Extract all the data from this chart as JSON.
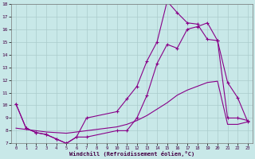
{
  "xlabel": "Windchill (Refroidissement éolien,°C)",
  "xlim": [
    -0.5,
    23.5
  ],
  "ylim": [
    7,
    18
  ],
  "yticks": [
    7,
    8,
    9,
    10,
    11,
    12,
    13,
    14,
    15,
    16,
    17,
    18
  ],
  "xticks": [
    0,
    1,
    2,
    3,
    4,
    5,
    6,
    7,
    8,
    9,
    10,
    11,
    12,
    13,
    14,
    15,
    16,
    17,
    18,
    19,
    20,
    21,
    22,
    23
  ],
  "line_color": "#880088",
  "bg_color": "#c8e8e8",
  "grid_color": "#aacccc",
  "line1_x": [
    0,
    1,
    2,
    3,
    4,
    5,
    6,
    7,
    10,
    11,
    12,
    13,
    14,
    15,
    16,
    17,
    18,
    19,
    20,
    21,
    22,
    23
  ],
  "line1_y": [
    10.1,
    8.2,
    7.85,
    7.7,
    7.35,
    7.0,
    7.5,
    7.5,
    8.0,
    8.0,
    9.0,
    10.8,
    13.3,
    14.8,
    14.5,
    16.0,
    16.2,
    16.5,
    15.1,
    11.8,
    10.6,
    8.7
  ],
  "line2_x": [
    0,
    1,
    2,
    3,
    4,
    5,
    6,
    7,
    10,
    11,
    12,
    13,
    14,
    15,
    16,
    17,
    18,
    19,
    20,
    21,
    22,
    23
  ],
  "line2_y": [
    10.1,
    8.2,
    7.85,
    7.7,
    7.35,
    7.0,
    7.5,
    9.0,
    9.5,
    10.5,
    11.5,
    13.5,
    15.0,
    18.2,
    17.3,
    16.5,
    16.4,
    15.2,
    15.1,
    9.0,
    9.0,
    8.8
  ],
  "line3_x": [
    0,
    1,
    2,
    3,
    4,
    5,
    6,
    7,
    8,
    9,
    10,
    11,
    12,
    13,
    14,
    15,
    16,
    17,
    18,
    19,
    20,
    21,
    22,
    23
  ],
  "line3_y": [
    8.2,
    8.1,
    8.0,
    7.9,
    7.85,
    7.8,
    7.9,
    8.0,
    8.1,
    8.2,
    8.3,
    8.5,
    8.8,
    9.2,
    9.7,
    10.2,
    10.8,
    11.2,
    11.5,
    11.8,
    11.9,
    8.5,
    8.5,
    8.7
  ]
}
